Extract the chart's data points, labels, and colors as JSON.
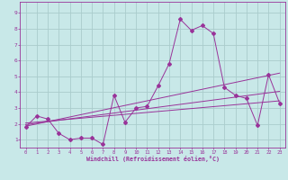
{
  "bg_color": "#c8e8e8",
  "line_color": "#993399",
  "grid_color": "#aacccc",
  "xlabel": "Windchill (Refroidissement éolien,°C)",
  "xlim": [
    -0.5,
    23.5
  ],
  "ylim": [
    0.5,
    9.7
  ],
  "x_ticks": [
    0,
    1,
    2,
    3,
    4,
    5,
    6,
    7,
    8,
    9,
    10,
    11,
    12,
    13,
    14,
    15,
    16,
    17,
    18,
    19,
    20,
    21,
    22,
    23
  ],
  "y_ticks": [
    1,
    2,
    3,
    4,
    5,
    6,
    7,
    8,
    9
  ],
  "main_x": [
    0,
    1,
    2,
    3,
    4,
    5,
    6,
    7,
    8,
    9,
    10,
    11,
    12,
    13,
    14,
    15,
    16,
    17,
    18,
    19,
    20,
    21,
    22,
    23
  ],
  "main_y": [
    1.8,
    2.5,
    2.3,
    1.4,
    1.0,
    1.1,
    1.1,
    0.7,
    3.8,
    2.1,
    3.0,
    3.1,
    4.4,
    5.8,
    8.6,
    7.9,
    8.2,
    7.7,
    4.3,
    3.8,
    3.6,
    1.9,
    5.1,
    3.3
  ],
  "trend_lines": [
    {
      "x": [
        0,
        23
      ],
      "y": [
        1.85,
        5.2
      ]
    },
    {
      "x": [
        0,
        23
      ],
      "y": [
        1.95,
        4.05
      ]
    },
    {
      "x": [
        0,
        23
      ],
      "y": [
        2.05,
        3.45
      ]
    }
  ]
}
